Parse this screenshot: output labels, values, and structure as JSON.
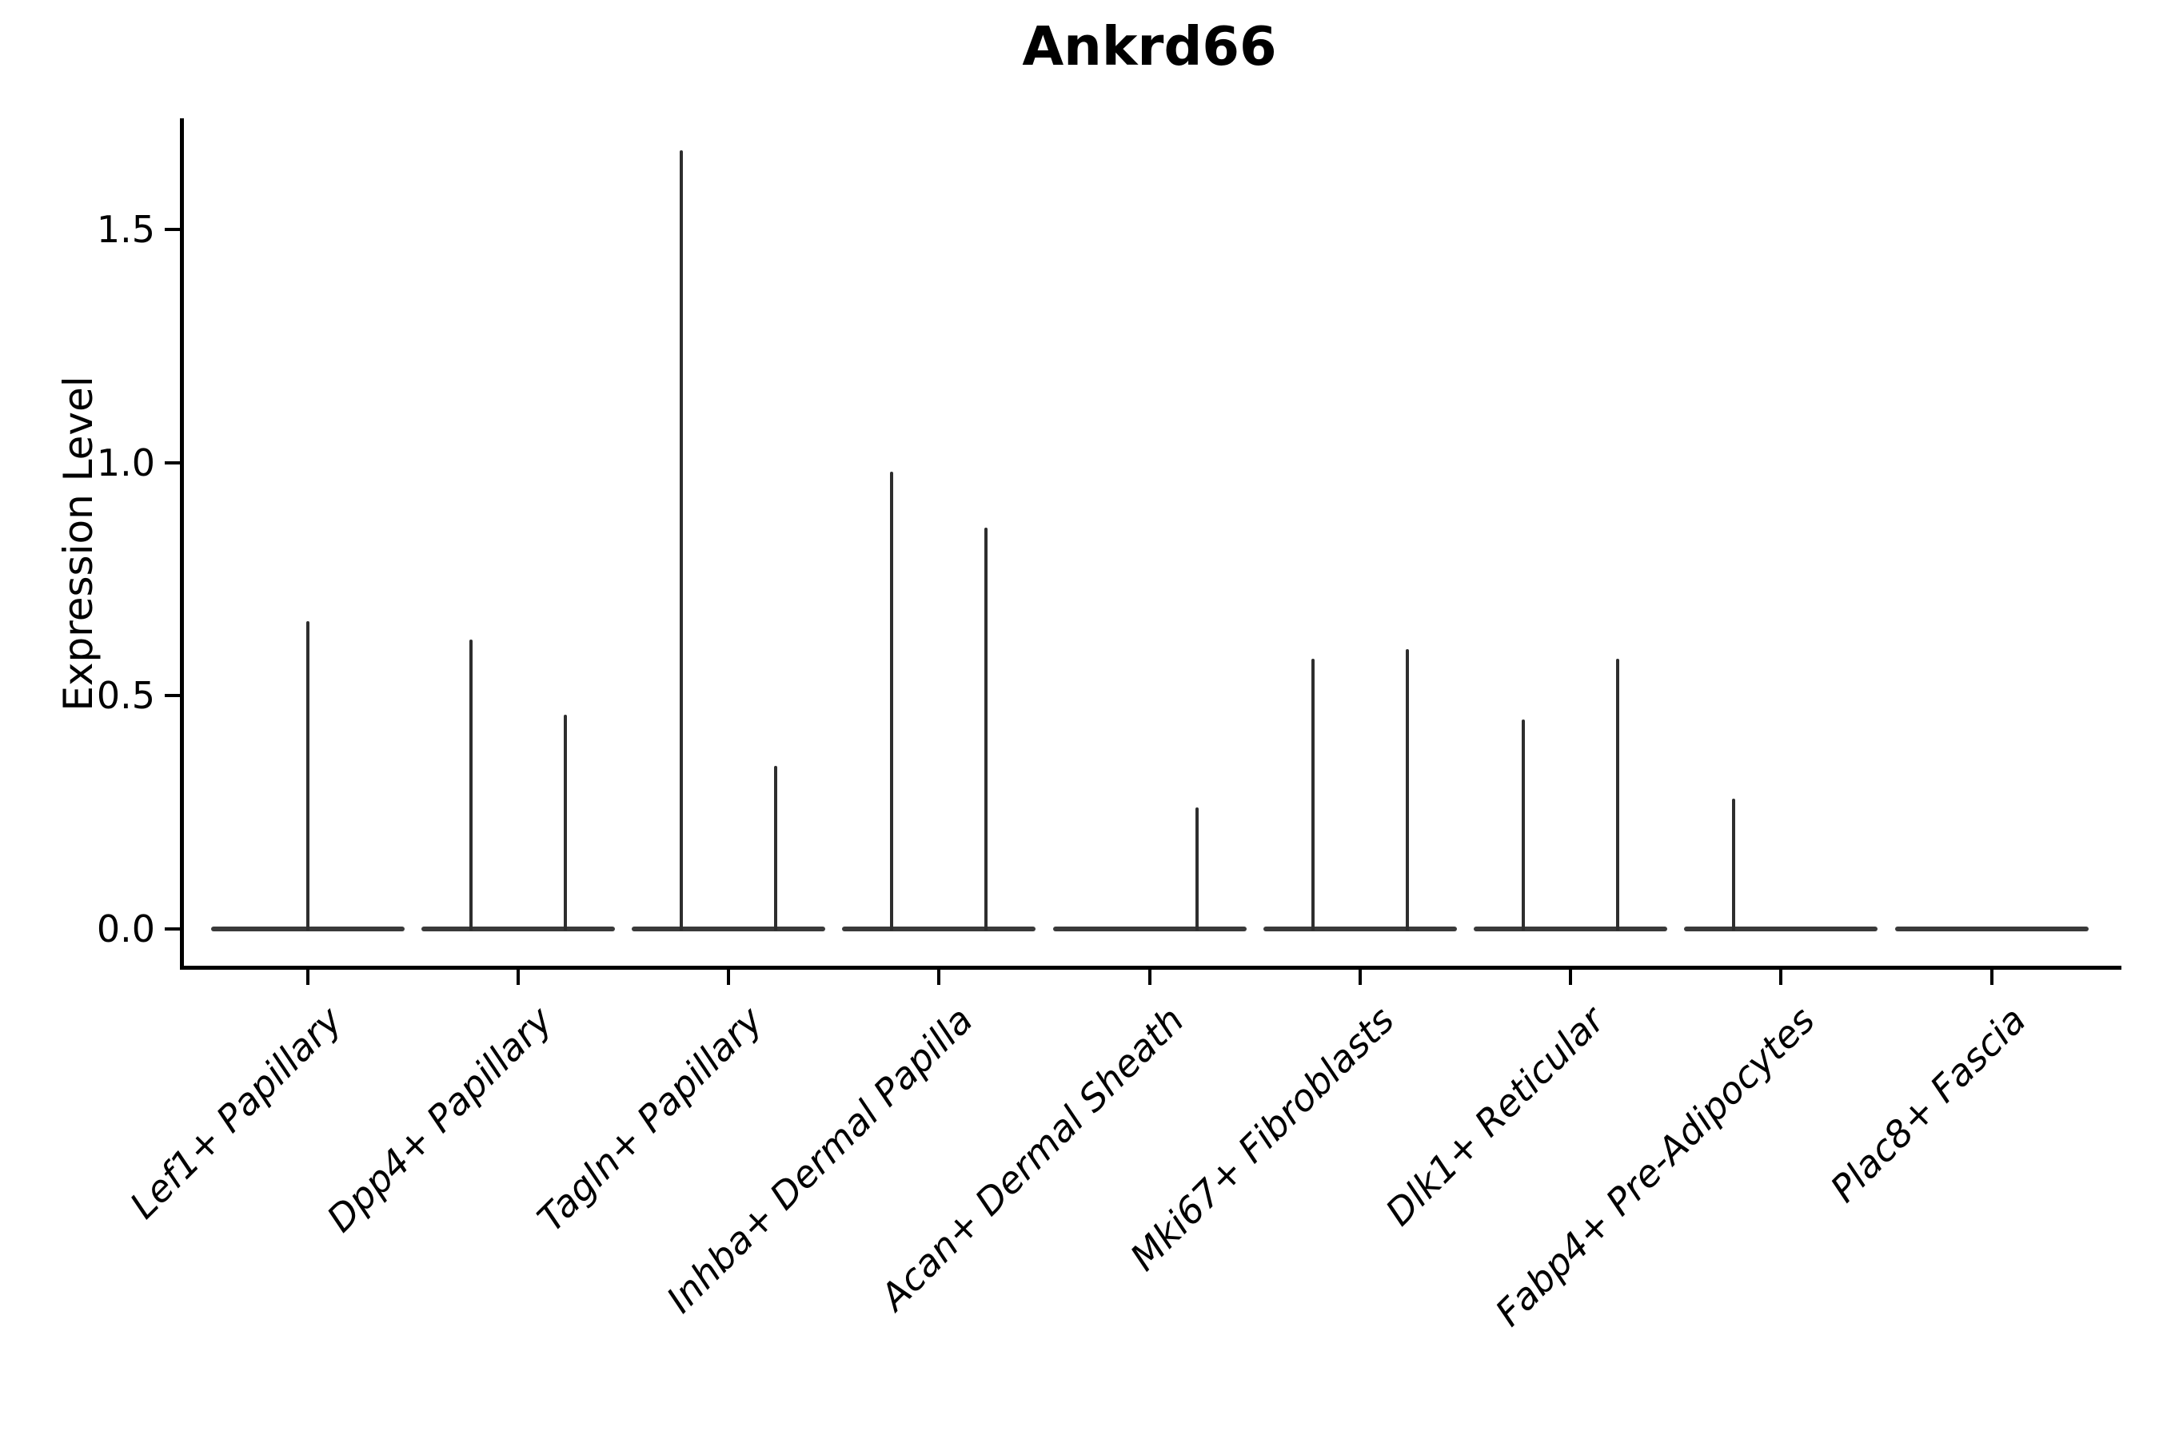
{
  "chart_data": {
    "type": "violin",
    "title": "Ankrd66",
    "xlabel": "",
    "ylabel": "Expression Level",
    "yticks": [
      0.0,
      0.5,
      1.0,
      1.5
    ],
    "ytick_labels": [
      "0.0",
      "0.5",
      "1.0",
      "1.5"
    ],
    "ylim": [
      -0.08,
      1.82
    ],
    "grid": false,
    "legend": false,
    "x_tick_rotation_deg": 45,
    "categories": [
      "Lef1+ Papillary",
      "Dpp4+ Papillary",
      "Tagln+ Papillary",
      "Inhba+ Dermal Papilla",
      "Acan+ Dermal Sheath",
      "Mki67+ Fibroblasts",
      "Dlk1+ Reticular",
      "Fabp4+ Pre-Adipocytes",
      "Plac8+ Fascia"
    ],
    "violins": [
      {
        "category": "Lef1+ Papillary",
        "baseline_value": 0,
        "spikes": [
          {
            "side": "center",
            "max_expression": 0.66
          }
        ]
      },
      {
        "category": "Dpp4+ Papillary",
        "baseline_value": 0,
        "spikes": [
          {
            "side": "left",
            "max_expression": 0.62
          },
          {
            "side": "right",
            "max_expression": 0.46
          }
        ]
      },
      {
        "category": "Tagln+ Papillary",
        "baseline_value": 0,
        "spikes": [
          {
            "side": "left",
            "max_expression": 1.67
          },
          {
            "side": "right",
            "max_expression": 0.35
          }
        ]
      },
      {
        "category": "Inhba+ Dermal Papilla",
        "baseline_value": 0,
        "spikes": [
          {
            "side": "left",
            "max_expression": 0.98
          },
          {
            "side": "right",
            "max_expression": 0.86
          }
        ]
      },
      {
        "category": "Acan+ Dermal Sheath",
        "baseline_value": 0,
        "spikes": [
          {
            "side": "right",
            "max_expression": 0.26
          }
        ]
      },
      {
        "category": "Mki67+ Fibroblasts",
        "baseline_value": 0,
        "spikes": [
          {
            "side": "left",
            "max_expression": 0.58
          },
          {
            "side": "right",
            "max_expression": 0.6
          }
        ]
      },
      {
        "category": "Dlk1+ Reticular",
        "baseline_value": 0,
        "spikes": [
          {
            "side": "left",
            "max_expression": 0.45
          },
          {
            "side": "right",
            "max_expression": 0.58
          }
        ]
      },
      {
        "category": "Fabp4+ Pre-Adipocytes",
        "baseline_value": 0,
        "spikes": [
          {
            "side": "left",
            "max_expression": 0.28
          }
        ]
      },
      {
        "category": "Plac8+ Fascia",
        "baseline_value": 0,
        "spikes": []
      }
    ],
    "colors": {
      "violin_line": "#333333",
      "axis": "#000000",
      "background": "#ffffff"
    }
  }
}
